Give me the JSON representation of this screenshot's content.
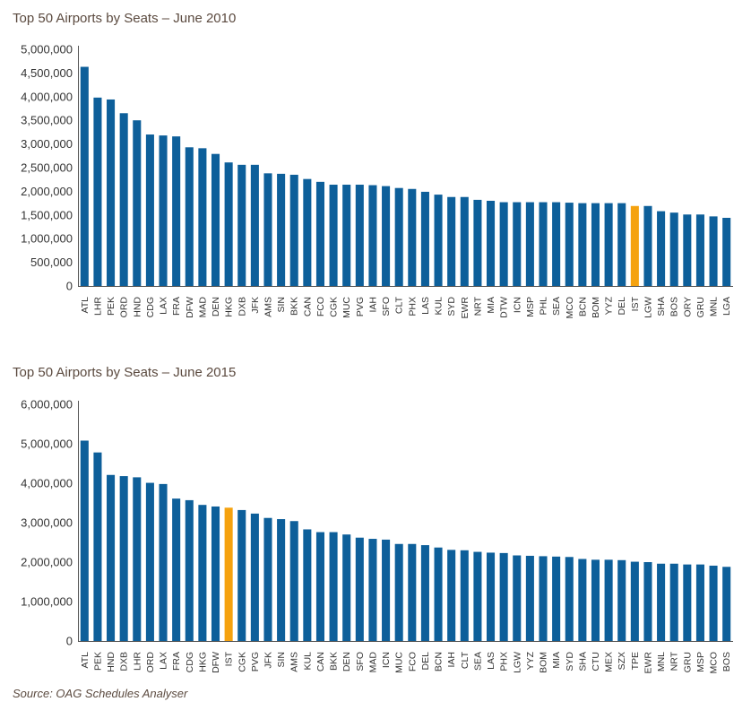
{
  "source_note": "Source: OAG Schedules Analyser",
  "colors": {
    "bar": "#0d5f9a",
    "highlight": "#f5a20f",
    "axis": "#555555"
  },
  "chart_data": [
    {
      "type": "bar",
      "title": "Top 50 Airports by Seats – June 2010",
      "xlabel": "",
      "ylabel": "",
      "ylim": [
        0,
        5000000
      ],
      "yticks": [
        0,
        500000,
        1000000,
        1500000,
        2000000,
        2500000,
        3000000,
        3500000,
        4000000,
        4500000,
        5000000
      ],
      "ytick_labels": [
        "0",
        "500,000",
        "1,000,000",
        "1,500,000",
        "2,000,000",
        "2,500,000",
        "3,000,000",
        "3,500,000",
        "4,000,000",
        "4,500,000",
        "5,000,000"
      ],
      "grid": false,
      "highlight": "IST",
      "categories": [
        "ATL",
        "LHR",
        "PEK",
        "ORD",
        "HND",
        "CDG",
        "LAX",
        "FRA",
        "DFW",
        "MAD",
        "DEN",
        "HKG",
        "DXB",
        "JFK",
        "AMS",
        "SIN",
        "BKK",
        "CAN",
        "FCO",
        "CGK",
        "MUC",
        "PVG",
        "IAH",
        "SFO",
        "CLT",
        "PHX",
        "LAS",
        "KUL",
        "SYD",
        "EWR",
        "NRT",
        "MIA",
        "DTW",
        "ICN",
        "MSP",
        "PHL",
        "SEA",
        "MCO",
        "BCN",
        "BOM",
        "YYZ",
        "DEL",
        "IST",
        "LGW",
        "SHA",
        "BOS",
        "ORY",
        "GRU",
        "MNL",
        "LGA"
      ],
      "values": [
        4630000,
        3980000,
        3940000,
        3650000,
        3500000,
        3200000,
        3180000,
        3160000,
        2930000,
        2910000,
        2790000,
        2610000,
        2560000,
        2560000,
        2380000,
        2370000,
        2350000,
        2260000,
        2200000,
        2140000,
        2140000,
        2140000,
        2130000,
        2110000,
        2070000,
        2050000,
        1990000,
        1930000,
        1880000,
        1880000,
        1820000,
        1800000,
        1770000,
        1770000,
        1770000,
        1770000,
        1770000,
        1760000,
        1750000,
        1750000,
        1750000,
        1750000,
        1690000,
        1690000,
        1580000,
        1550000,
        1510000,
        1510000,
        1470000,
        1440000
      ]
    },
    {
      "type": "bar",
      "title": "Top 50 Airports by Seats – June 2015",
      "xlabel": "",
      "ylabel": "",
      "ylim": [
        0,
        6000000
      ],
      "yticks": [
        0,
        1000000,
        2000000,
        3000000,
        4000000,
        5000000,
        6000000
      ],
      "ytick_labels": [
        "0",
        "1,000,000",
        "2,000,000",
        "3,000,000",
        "4,000,000",
        "5,000,000",
        "6,000,000"
      ],
      "grid": false,
      "highlight": "IST",
      "categories": [
        "ATL",
        "PEK",
        "HND",
        "DXB",
        "LHR",
        "ORD",
        "LAX",
        "FRA",
        "CDG",
        "HKG",
        "DFW",
        "IST",
        "CGK",
        "PVG",
        "JFK",
        "SIN",
        "AMS",
        "KUL",
        "CAN",
        "BKK",
        "DEN",
        "SFO",
        "MAD",
        "ICN",
        "MUC",
        "FCO",
        "DEL",
        "BCN",
        "IAH",
        "CLT",
        "SEA",
        "LAS",
        "PHX",
        "LGW",
        "YYZ",
        "BOM",
        "MIA",
        "SYD",
        "SHA",
        "CTU",
        "MEX",
        "SZX",
        "TPE",
        "EWR",
        "MNL",
        "NRT",
        "GRU",
        "MSP",
        "MCO",
        "BOS"
      ],
      "values": [
        5080000,
        4780000,
        4210000,
        4180000,
        4150000,
        4010000,
        3980000,
        3610000,
        3570000,
        3450000,
        3410000,
        3380000,
        3320000,
        3230000,
        3120000,
        3090000,
        3040000,
        2830000,
        2760000,
        2760000,
        2700000,
        2620000,
        2590000,
        2570000,
        2460000,
        2460000,
        2430000,
        2370000,
        2310000,
        2300000,
        2260000,
        2240000,
        2230000,
        2170000,
        2160000,
        2150000,
        2140000,
        2130000,
        2080000,
        2060000,
        2060000,
        2050000,
        2010000,
        2000000,
        1960000,
        1960000,
        1940000,
        1940000,
        1910000,
        1880000
      ]
    }
  ]
}
